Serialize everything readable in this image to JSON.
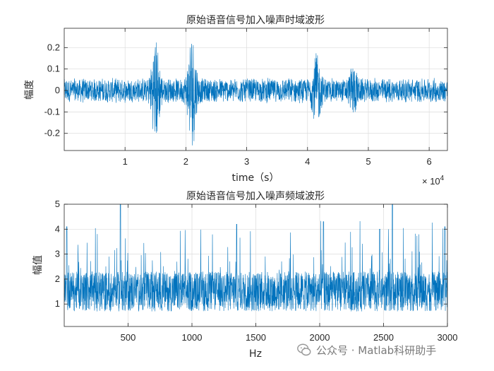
{
  "colors": {
    "signal": "#0072BD",
    "axis": "#262626",
    "grid": "#dcdcdc"
  },
  "chart_data": [
    {
      "type": "line",
      "title": "原始语音信号加入噪声时域波形",
      "xlabel": "time（s）",
      "ylabel": "幅度",
      "x_exponent_base": "× 10",
      "x_exponent_power": "4",
      "xlim": [
        0,
        6.3
      ],
      "ylim": [
        -0.28,
        0.29
      ],
      "xticks": [
        1,
        2,
        3,
        4,
        5,
        6
      ],
      "xtick_labels": [
        "1",
        "2",
        "3",
        "4",
        "5",
        "6"
      ],
      "yticks": [
        -0.2,
        -0.1,
        0,
        0.1,
        0.2
      ],
      "ytick_labels": [
        "-0.2",
        "-0.1",
        "0",
        "0.1",
        "0.2"
      ],
      "grid": true,
      "noise_amplitude": 0.055,
      "bursts": [
        {
          "center": 1.5,
          "width": 0.07,
          "amp": 0.25
        },
        {
          "center": 2.1,
          "width": 0.07,
          "amp": 0.28
        },
        {
          "center": 4.15,
          "width": 0.07,
          "amp": 0.18
        },
        {
          "center": 4.75,
          "width": 0.06,
          "amp": 0.13
        }
      ]
    },
    {
      "type": "line",
      "title": "原始语音信号加入噪声频域波形",
      "xlabel": "Hz",
      "ylabel": "幅值",
      "xlim": [
        0,
        3000
      ],
      "ylim": [
        0.1,
        5
      ],
      "xticks": [
        500,
        1000,
        1500,
        2000,
        2500,
        3000
      ],
      "xtick_labels": [
        "500",
        "1000",
        "1500",
        "2000",
        "2500",
        "3000"
      ],
      "yticks": [
        1,
        2,
        3,
        4,
        5
      ],
      "ytick_labels": [
        "1",
        "2",
        "3",
        "4",
        "5"
      ],
      "grid": true,
      "baseline": 1.5,
      "peaks": [
        {
          "x": 440,
          "y": 5.0
        },
        {
          "x": 2570,
          "y": 5.0
        },
        {
          "x": 20,
          "y": 4.1
        },
        {
          "x": 1350,
          "y": 4.2
        },
        {
          "x": 2030,
          "y": 4.3
        },
        {
          "x": 2470,
          "y": 4.0
        },
        {
          "x": 2980,
          "y": 4.1
        }
      ]
    }
  ],
  "watermark": {
    "text": "公众号 · Matlab科研助手"
  }
}
